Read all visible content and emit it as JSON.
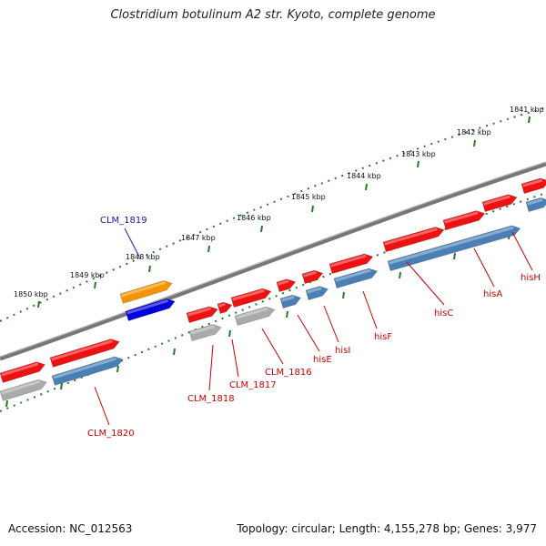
{
  "title": "Clostridium botulinum A2 str. Kyoto, complete genome",
  "footer": {
    "accession": "Accession: NC_012563",
    "summary": "Topology: circular; Length: 4,155,278 bp; Genes: 3,977"
  },
  "colors": {
    "backbone": "#777777",
    "gene_forward": "#ee1111",
    "cds_forward": "#4a7fb5",
    "pseudo_gray": "#aaaaaa",
    "highlight_gene": "#f39400",
    "highlight_cds": "#0000dd",
    "label_red": "#cc0000",
    "label_blue": "#1a1aaa",
    "tick_green": "#2a7a2a"
  },
  "kbp_marks": [
    "1841 kbp",
    "1842 kbp",
    "1843 kbp",
    "1844 kbp",
    "1845 kbp",
    "1846 kbp",
    "1847 kbp",
    "1848 kbp",
    "1849 kbp",
    "1850 kbp"
  ],
  "genes": [
    {
      "name": "hisH",
      "label_color": "red"
    },
    {
      "name": "hisA",
      "label_color": "red"
    },
    {
      "name": "hisC",
      "label_color": "red"
    },
    {
      "name": "hisF",
      "label_color": "red"
    },
    {
      "name": "hisI",
      "label_color": "red"
    },
    {
      "name": "hisE",
      "label_color": "red"
    },
    {
      "name": "CLM_1816",
      "label_color": "red"
    },
    {
      "name": "CLM_1817",
      "label_color": "red"
    },
    {
      "name": "CLM_1818",
      "label_color": "red"
    },
    {
      "name": "CLM_1819",
      "label_color": "blue"
    },
    {
      "name": "CLM_1820",
      "label_color": "red"
    }
  ]
}
